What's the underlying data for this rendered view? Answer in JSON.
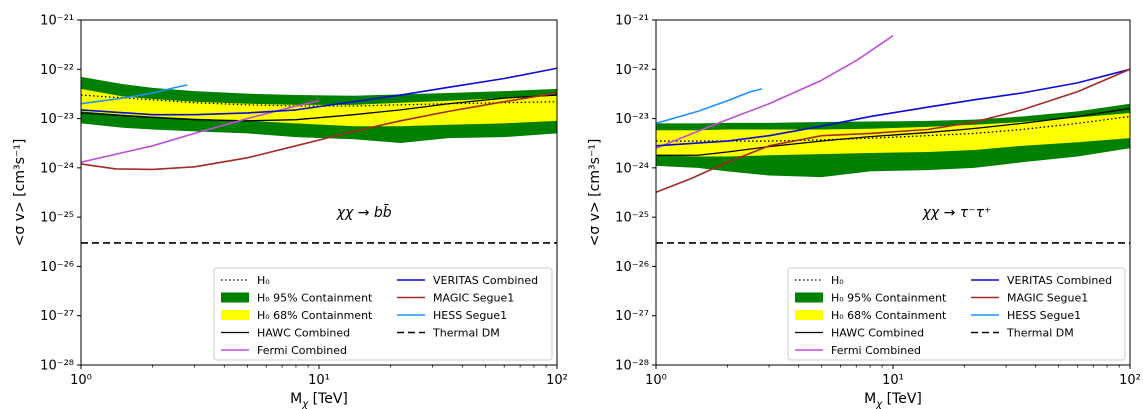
{
  "chart_data": [
    {
      "type": "line",
      "xscale": "log",
      "yscale": "log",
      "xlim": [
        1,
        100
      ],
      "ylim": [
        1e-28,
        1e-21
      ],
      "xlabel": "M",
      "xlabel_sub": "χ",
      "xlabel_unit": " [TeV]",
      "ylabel": "<σ v> [cm³s⁻¹]",
      "annotation": "χχ → bb̄",
      "legend": "lower-right",
      "band95": {
        "name": "H₀ 95% Containment",
        "color": "#008000",
        "x": [
          1,
          1.5,
          2,
          3,
          5,
          8,
          14,
          22,
          35,
          60,
          100
        ],
        "upper": [
          7e-23,
          5e-23,
          4.2e-23,
          3.6e-23,
          3.2e-23,
          3e-23,
          2.9e-23,
          3.1e-23,
          3.3e-23,
          3.6e-23,
          4e-23
        ],
        "lower": [
          8e-24,
          6.5e-24,
          6e-24,
          5.5e-24,
          5e-24,
          4.2e-24,
          3.8e-24,
          3.2e-24,
          4e-24,
          4.2e-24,
          5e-24
        ]
      },
      "band68": {
        "name": "H₀ 68% Containment",
        "color": "#ffff00",
        "x": [
          1,
          1.5,
          2,
          3,
          5,
          8,
          14,
          22,
          35,
          60,
          100
        ],
        "upper": [
          4e-23,
          2.8e-23,
          2.5e-23,
          2.2e-23,
          2e-23,
          1.9e-23,
          1.9e-23,
          2.1e-23,
          2.3e-23,
          2.6e-23,
          3e-23
        ],
        "lower": [
          1.4e-23,
          1.2e-23,
          1.1e-23,
          1e-23,
          9e-24,
          8e-24,
          7e-24,
          7e-24,
          7.5e-24,
          8e-24,
          9e-24
        ]
      },
      "series": [
        {
          "name": "H₀",
          "color": "#000000",
          "style": "dotted",
          "width": 1.3,
          "x": [
            1,
            2,
            3,
            5,
            8,
            14,
            22,
            35,
            60,
            100
          ],
          "y": [
            3e-23,
            2.4e-23,
            2.1e-23,
            1.9e-23,
            1.8e-23,
            1.8e-23,
            1.9e-23,
            2e-23,
            2.1e-23,
            2.2e-23
          ]
        },
        {
          "name": "HAWC Combined",
          "color": "#000000",
          "style": "solid",
          "width": 1.3,
          "x": [
            1,
            2,
            3,
            5,
            8,
            14,
            22,
            35,
            60,
            100
          ],
          "y": [
            1.3e-23,
            1.05e-23,
            9.5e-24,
            9e-24,
            9.5e-24,
            1.2e-23,
            1.5e-23,
            2e-23,
            2.6e-23,
            3e-23
          ]
        },
        {
          "name": "Fermi Combined",
          "color": "#bf4fd6",
          "style": "solid",
          "width": 1.6,
          "x": [
            1,
            2,
            3,
            5,
            8,
            10
          ],
          "y": [
            1.3e-24,
            2.8e-24,
            5e-24,
            1e-23,
            1.8e-23,
            2.3e-23
          ]
        },
        {
          "name": "VERITAS Combined",
          "color": "#0a0ad6",
          "style": "solid",
          "width": 1.6,
          "x": [
            1,
            2,
            3,
            5,
            8,
            14,
            22,
            35,
            60,
            100
          ],
          "y": [
            1.5e-23,
            1.2e-23,
            1.2e-23,
            1.3e-23,
            1.5e-23,
            2.2e-23,
            3e-23,
            4.3e-23,
            6.5e-23,
            1.05e-22
          ]
        },
        {
          "name": "MAGIC Segue1",
          "color": "#a52a2a",
          "style": "solid",
          "width": 1.6,
          "x": [
            1,
            1.4,
            2,
            3,
            5,
            8,
            14,
            22,
            35,
            60,
            100
          ],
          "y": [
            1.2e-24,
            9.5e-25,
            9.3e-25,
            1.05e-24,
            1.6e-24,
            2.8e-24,
            5.5e-24,
            9e-24,
            1.4e-23,
            2.2e-23,
            3.3e-23
          ]
        },
        {
          "name": "HESS Segue1",
          "color": "#1e90ff",
          "style": "solid",
          "width": 1.6,
          "x": [
            1,
            1.5,
            2,
            2.5,
            2.8
          ],
          "y": [
            2e-23,
            2.6e-23,
            3.3e-23,
            4.3e-23,
            4.8e-23
          ]
        },
        {
          "name": "Thermal DM",
          "color": "#000000",
          "style": "dashed",
          "width": 1.6,
          "x": [
            1,
            100
          ],
          "y": [
            3e-26,
            3e-26
          ]
        }
      ]
    },
    {
      "type": "line",
      "xscale": "log",
      "yscale": "log",
      "xlim": [
        1,
        100
      ],
      "ylim": [
        1e-28,
        1e-21
      ],
      "xlabel": "M",
      "xlabel_sub": "χ",
      "xlabel_unit": " [TeV]",
      "ylabel": "<σ v> [cm³s⁻¹]",
      "annotation": "χχ → τ⁻τ⁺",
      "legend": "lower-right",
      "band95": {
        "name": "H₀ 95% Containment",
        "color": "#008000",
        "x": [
          1,
          1.5,
          2,
          3,
          5,
          8,
          14,
          22,
          35,
          60,
          100
        ],
        "upper": [
          8e-24,
          8e-24,
          8.2e-24,
          8.2e-24,
          8.5e-24,
          8.7e-24,
          9e-24,
          9.5e-24,
          1.1e-23,
          1.4e-23,
          2e-23
        ],
        "lower": [
          1.1e-24,
          1e-24,
          8.5e-25,
          7e-25,
          6.5e-25,
          8.5e-25,
          9e-25,
          1e-24,
          1.3e-24,
          1.7e-24,
          2.5e-24
        ]
      },
      "band68": {
        "name": "H₀ 68% Containment",
        "color": "#ffff00",
        "x": [
          1,
          1.5,
          2,
          3,
          5,
          8,
          14,
          22,
          35,
          60,
          100
        ],
        "upper": [
          5.8e-24,
          5.8e-24,
          6e-24,
          6e-24,
          6e-24,
          6.2e-24,
          6.8e-24,
          7.5e-24,
          8.5e-24,
          1.05e-23,
          1.3e-23
        ],
        "lower": [
          1.8e-24,
          1.7e-24,
          1.7e-24,
          1.8e-24,
          1.9e-24,
          2e-24,
          2.1e-24,
          2.3e-24,
          2.8e-24,
          3.3e-24,
          4e-24
        ]
      },
      "series": [
        {
          "name": "H₀",
          "color": "#000000",
          "style": "dotted",
          "width": 1.3,
          "x": [
            1,
            2,
            3,
            5,
            8,
            14,
            22,
            35,
            60,
            100
          ],
          "y": [
            3.5e-24,
            3.5e-24,
            3.5e-24,
            3.7e-24,
            4e-24,
            4.5e-24,
            5e-24,
            6e-24,
            8e-24,
            1.1e-23
          ]
        },
        {
          "name": "HAWC Combined",
          "color": "#000000",
          "style": "solid",
          "width": 1.3,
          "x": [
            1,
            1.5,
            2,
            3,
            5,
            8,
            14,
            22,
            35,
            60,
            100
          ],
          "y": [
            1.8e-24,
            1.8e-24,
            2.1e-24,
            2.7e-24,
            3.5e-24,
            4.3e-24,
            5.2e-24,
            6.3e-24,
            8e-24,
            1.1e-23,
            1.6e-23
          ]
        },
        {
          "name": "Fermi Combined",
          "color": "#bf4fd6",
          "style": "solid",
          "width": 1.6,
          "x": [
            1,
            1.5,
            2,
            3,
            5,
            7,
            10
          ],
          "y": [
            2.5e-24,
            5.5e-24,
            9.5e-24,
            2e-23,
            6e-23,
            1.5e-22,
            4.8e-22
          ]
        },
        {
          "name": "VERITAS Combined",
          "color": "#0a0ad6",
          "style": "solid",
          "width": 1.6,
          "x": [
            1,
            2,
            3,
            5,
            8,
            14,
            22,
            35,
            60,
            100
          ],
          "y": [
            2.8e-24,
            3.5e-24,
            4.5e-24,
            7e-24,
            1.1e-23,
            1.7e-23,
            2.4e-23,
            3.3e-23,
            5.3e-23,
            1e-22
          ]
        },
        {
          "name": "MAGIC Segue1",
          "color": "#a52a2a",
          "style": "solid",
          "width": 1.6,
          "x": [
            1,
            1.4,
            2,
            3,
            5,
            8,
            14,
            22,
            35,
            60,
            100
          ],
          "y": [
            3.2e-25,
            6e-25,
            1.3e-24,
            2.8e-24,
            4.5e-24,
            5e-24,
            6e-24,
            8.5e-24,
            1.5e-23,
            3.5e-23,
            1e-22
          ]
        },
        {
          "name": "HESS Segue1",
          "color": "#1e90ff",
          "style": "solid",
          "width": 1.6,
          "x": [
            1,
            1.5,
            2,
            2.5,
            2.8
          ],
          "y": [
            8e-24,
            1.4e-23,
            2.3e-23,
            3.5e-23,
            4e-23
          ]
        },
        {
          "name": "Thermal DM",
          "color": "#000000",
          "style": "dashed",
          "width": 1.6,
          "x": [
            1,
            100
          ],
          "y": [
            3e-26,
            3e-26
          ]
        }
      ]
    }
  ]
}
